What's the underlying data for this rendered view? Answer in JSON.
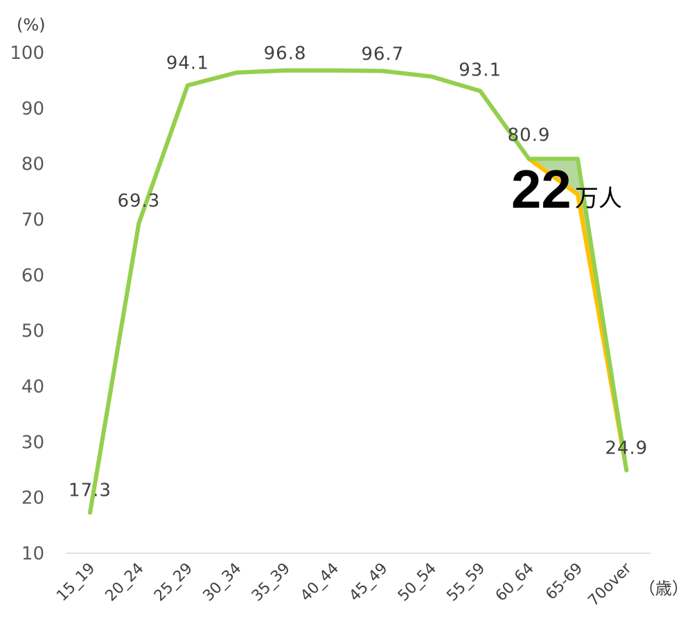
{
  "chart_data": {
    "type": "line",
    "categories": [
      "15_19",
      "20_24",
      "25_29",
      "30_34",
      "35_39",
      "40_44",
      "45_49",
      "50_54",
      "55_59",
      "60_64",
      "65-69",
      "70over"
    ],
    "series": [
      {
        "values": [
          17.3,
          69.3,
          94.1,
          96.4,
          96.8,
          96.8,
          96.7,
          95.7,
          93.1,
          80.9,
          74.5,
          24.9
        ],
        "color": "#FFC000"
      },
      {
        "values": [
          17.3,
          69.3,
          94.1,
          96.4,
          96.8,
          96.8,
          96.7,
          95.7,
          93.1,
          80.9,
          80.9,
          24.9
        ],
        "color": "#92D050"
      }
    ],
    "data_labels": [
      {
        "index": 0,
        "text": "17.3"
      },
      {
        "index": 1,
        "text": "69.3"
      },
      {
        "index": 2,
        "text": "94.1"
      },
      {
        "index": 4,
        "text": "96.8"
      },
      {
        "index": 6,
        "text": "96.7"
      },
      {
        "index": 8,
        "text": "93.1"
      },
      {
        "index": 9,
        "text": "80.9"
      },
      {
        "index": 11,
        "text": "24.9"
      }
    ],
    "ylim": [
      10,
      100
    ],
    "yticks": [
      "10",
      "20",
      "30",
      "40",
      "50",
      "60",
      "70",
      "80",
      "90",
      "100"
    ],
    "yunit": "(%)",
    "xunit": "（歳）",
    "annotation": {
      "number": "22",
      "unit": "万人"
    },
    "gap_fill_color": "#A9D18E"
  }
}
